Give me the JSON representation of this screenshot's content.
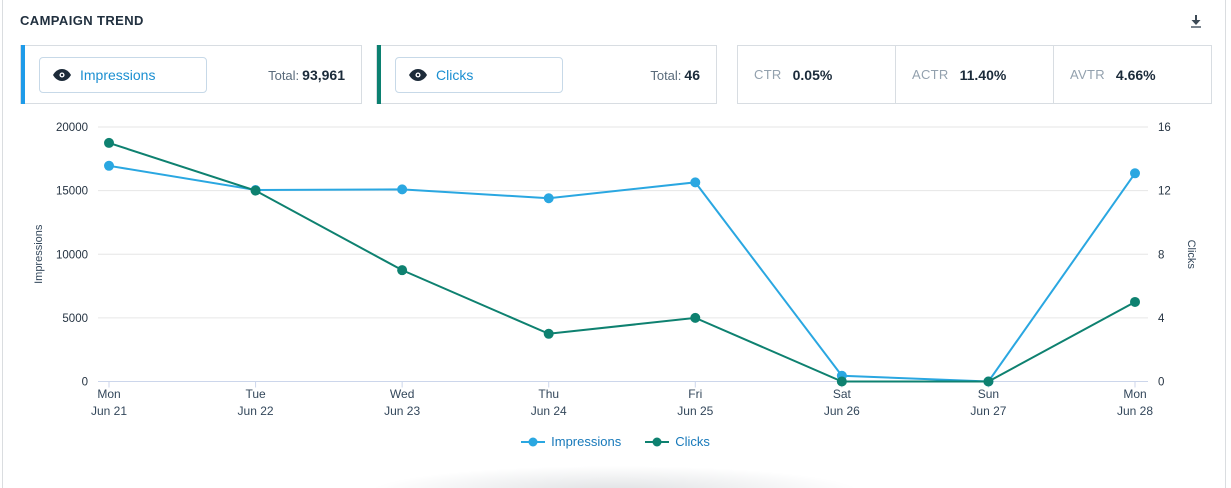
{
  "header": {
    "title": "CAMPAIGN TREND"
  },
  "toggles": [
    {
      "label": "Impressions",
      "total_label": "Total:",
      "total_value": "93,961",
      "accent_color": "#1e9be9"
    },
    {
      "label": "Clicks",
      "total_label": "Total:",
      "total_value": "46",
      "accent_color": "#0b8070"
    }
  ],
  "stats": [
    {
      "label": "CTR",
      "value": "0.05%"
    },
    {
      "label": "ACTR",
      "value": "11.40%"
    },
    {
      "label": "AVTR",
      "value": "4.66%"
    }
  ],
  "chart_data": {
    "type": "line",
    "title": "",
    "categories": [
      {
        "day": "Mon",
        "date": "Jun 21"
      },
      {
        "day": "Tue",
        "date": "Jun 22"
      },
      {
        "day": "Wed",
        "date": "Jun 23"
      },
      {
        "day": "Thu",
        "date": "Jun 24"
      },
      {
        "day": "Fri",
        "date": "Jun 25"
      },
      {
        "day": "Sat",
        "date": "Jun 26"
      },
      {
        "day": "Sun",
        "date": "Jun 27"
      },
      {
        "day": "Mon",
        "date": "Jun 28"
      }
    ],
    "series": [
      {
        "name": "Impressions",
        "color": "#2aa7e1",
        "axis": "left",
        "values": [
          16950,
          15050,
          15100,
          14400,
          15650,
          450,
          0,
          16361
        ]
      },
      {
        "name": "Clicks",
        "color": "#0e8170",
        "axis": "right",
        "values": [
          15,
          12,
          7,
          3,
          4,
          0,
          0,
          5
        ]
      }
    ],
    "left_axis": {
      "title": "Impressions",
      "ticks": [
        0,
        5000,
        10000,
        15000,
        20000
      ],
      "max": 20000
    },
    "right_axis": {
      "title": "Clicks",
      "ticks": [
        0,
        4,
        8,
        12,
        16
      ],
      "max": 16
    },
    "grid": "horizontal",
    "legend_position": "bottom"
  },
  "colors": {
    "grid_line": "#e6e6e6",
    "axis_line": "#ccd6eb",
    "eye_icon": "#1d2b39",
    "download_icon": "#3d4a56"
  }
}
